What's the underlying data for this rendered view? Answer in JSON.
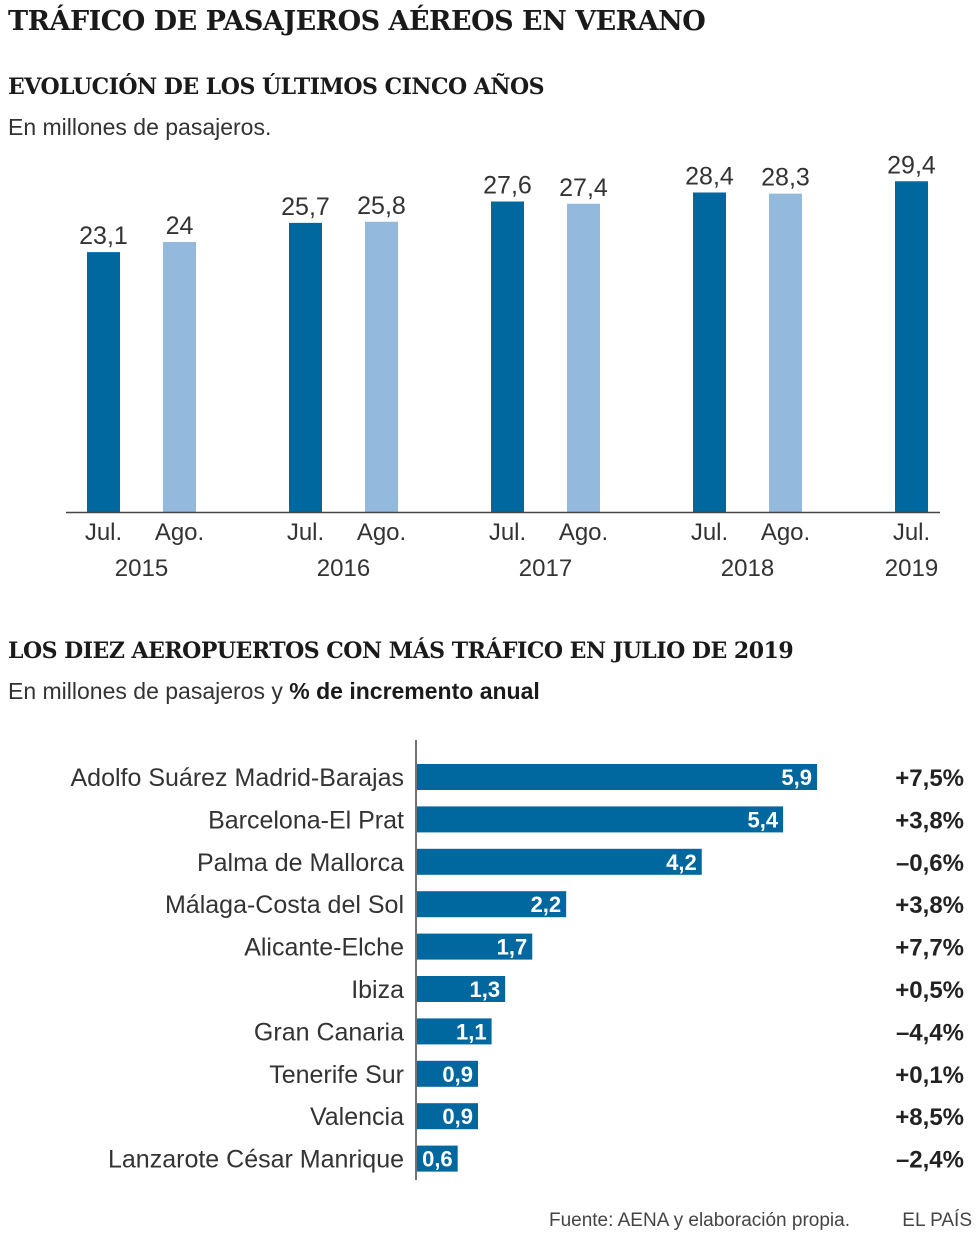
{
  "title": "TRÁFICO DE PASAJEROS AÉREOS EN VERANO",
  "colors": {
    "dark": "#00679F",
    "light": "#93BADC",
    "axis": "#444444",
    "text": "#333333",
    "pct": "#222222"
  },
  "chart_data": [
    {
      "type": "bar",
      "title": "EVOLUCIÓN DE LOS ÚLTIMOS CINCO AÑOS",
      "subtitle": "En millones de pasajeros.",
      "ylim": [
        0,
        30
      ],
      "groups": [
        {
          "year": "2015",
          "bars": [
            {
              "month": "Jul.",
              "value": 23.1,
              "label": "23,1"
            },
            {
              "month": "Ago.",
              "value": 24,
              "label": "24"
            }
          ]
        },
        {
          "year": "2016",
          "bars": [
            {
              "month": "Jul.",
              "value": 25.7,
              "label": "25,7"
            },
            {
              "month": "Ago.",
              "value": 25.8,
              "label": "25,8"
            }
          ]
        },
        {
          "year": "2017",
          "bars": [
            {
              "month": "Jul.",
              "value": 27.6,
              "label": "27,6"
            },
            {
              "month": "Ago.",
              "value": 27.4,
              "label": "27,4"
            }
          ]
        },
        {
          "year": "2018",
          "bars": [
            {
              "month": "Jul.",
              "value": 28.4,
              "label": "28,4"
            },
            {
              "month": "Ago.",
              "value": 28.3,
              "label": "28,3"
            }
          ]
        },
        {
          "year": "2019",
          "bars": [
            {
              "month": "Jul.",
              "value": 29.4,
              "label": "29,4"
            }
          ]
        }
      ]
    },
    {
      "type": "bar",
      "orientation": "horizontal",
      "title": "LOS DIEZ AEROPUERTOS CON MÁS TRÁFICO EN JULIO DE 2019",
      "subtitle": "En millones de pasajeros y ",
      "subtitle_bold": "% de incremento anual",
      "categories": [
        "Adolfo Suárez Madrid-Barajas",
        "Barcelona-El Prat",
        "Palma de Mallorca",
        "Málaga-Costa del Sol",
        "Alicante-Elche",
        "Ibiza",
        "Gran Canaria",
        "Tenerife Sur",
        "Valencia",
        "Lanzarote César Manrique"
      ],
      "values": [
        5.9,
        5.4,
        4.2,
        2.2,
        1.7,
        1.3,
        1.1,
        0.9,
        0.9,
        0.6
      ],
      "value_labels": [
        "5,9",
        "5,4",
        "4,2",
        "2,2",
        "1,7",
        "1,3",
        "1,1",
        "0,9",
        "0,9",
        "0,6"
      ],
      "pct_change": [
        "+7,5%",
        "+3,8%",
        "–0,6%",
        "+3,8%",
        "+7,7%",
        "+0,5%",
        "–4,4%",
        "+0,1%",
        "+8,5%",
        "–2,4%"
      ]
    }
  ],
  "source": "Fuente: AENA y elaboración propia.",
  "brand": "EL PAÍS"
}
